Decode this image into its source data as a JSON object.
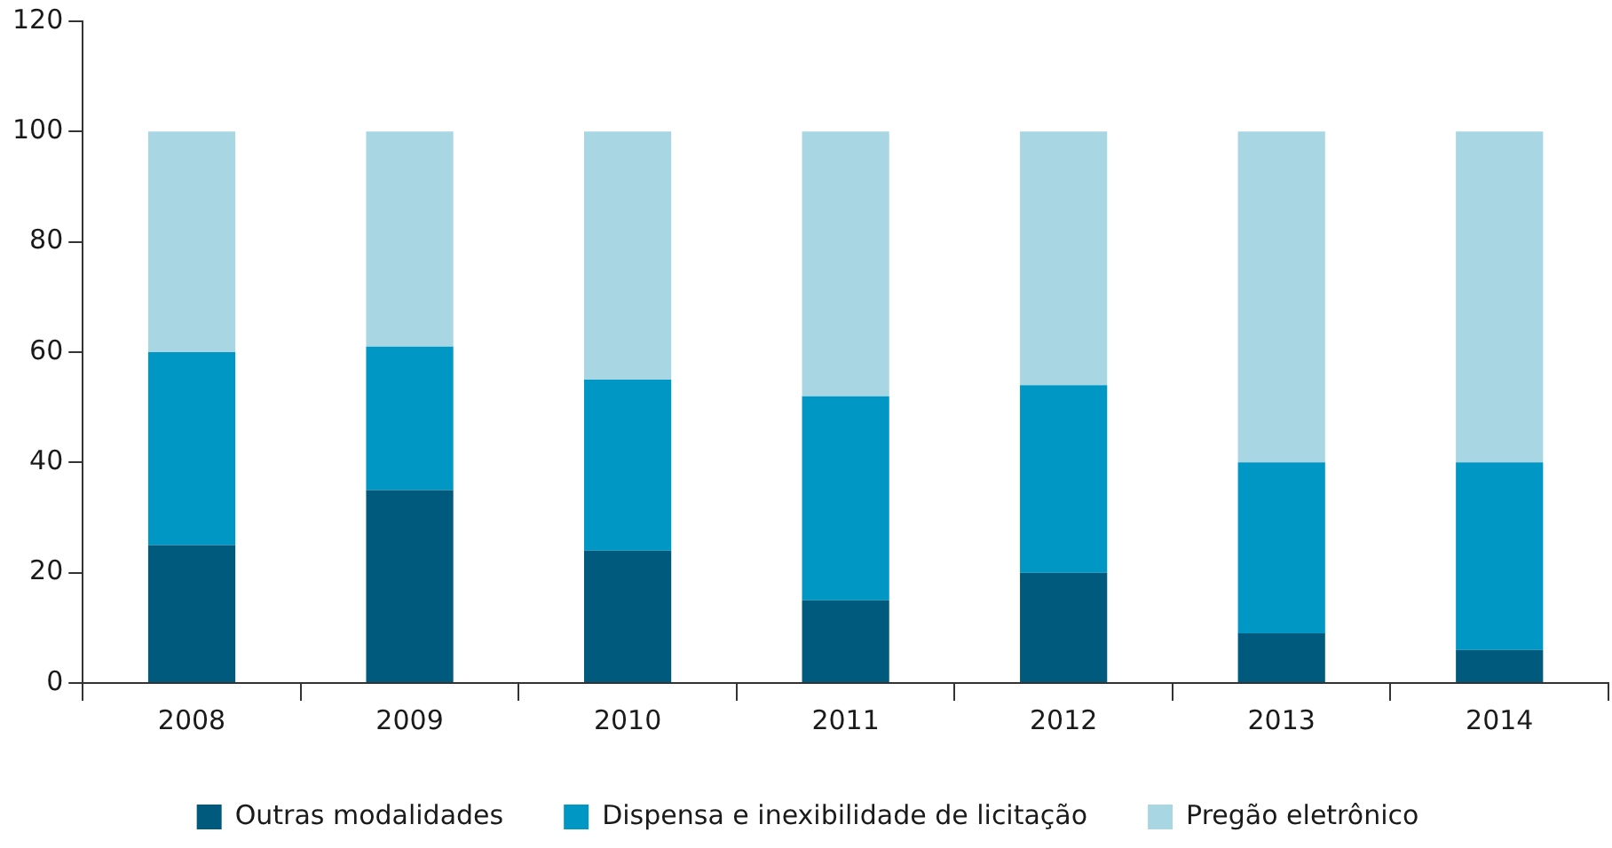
{
  "chart_data": {
    "type": "bar",
    "stacked": true,
    "categories": [
      "2008",
      "2009",
      "2010",
      "2011",
      "2012",
      "2013",
      "2014"
    ],
    "series": [
      {
        "name": "Outras modalidades",
        "color": "#005a7e",
        "values": [
          25,
          35,
          24,
          15,
          20,
          9,
          6
        ]
      },
      {
        "name": "Dispensa e inexibilidade de licitação",
        "color": "#0097c4",
        "values": [
          35,
          26,
          31,
          37,
          34,
          31,
          34
        ]
      },
      {
        "name": "Pregão eletrônico",
        "color": "#a9d6e3",
        "values": [
          40,
          39,
          45,
          48,
          46,
          60,
          60
        ]
      }
    ],
    "ylim": [
      0,
      120
    ],
    "yticks": [
      0,
      20,
      40,
      60,
      80,
      100,
      120
    ],
    "grid": false,
    "legend": "bottom"
  }
}
